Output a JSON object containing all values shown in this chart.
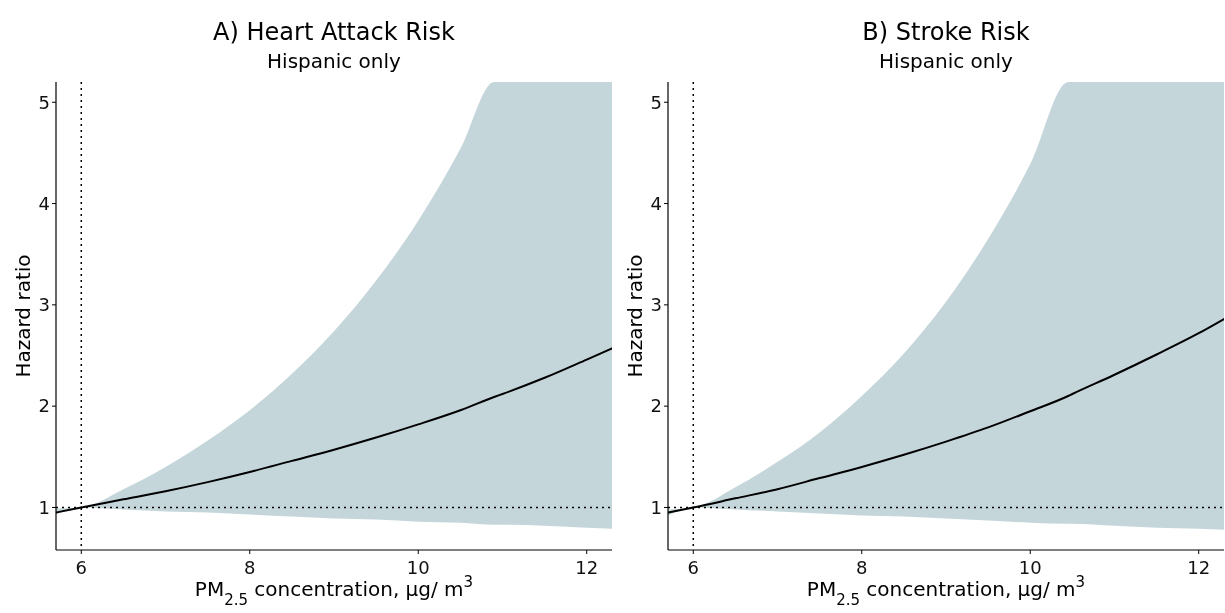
{
  "chart_data": [
    {
      "type": "line",
      "title": "A) Heart Attack Risk",
      "subtitle": "Hispanic only",
      "xlabel": "PM$_{2.5}$ concentration, μg/ m$^{3}$",
      "ylabel": "Hazard ratio",
      "x": [
        5.7,
        6,
        6.5,
        7,
        7.5,
        8,
        8.5,
        9,
        9.5,
        10,
        10.5,
        10.9,
        11,
        11.5,
        12,
        12.3
      ],
      "series": [
        {
          "color": "#000000",
          "values": [
            0.95,
            1,
            1.08,
            1.16,
            1.25,
            1.35,
            1.46,
            1.57,
            1.69,
            1.82,
            1.96,
            2.09,
            2.12,
            2.28,
            2.46,
            2.57
          ],
          "upper": [
            0.99,
            1,
            1.18,
            1.4,
            1.66,
            1.96,
            2.32,
            2.74,
            3.24,
            3.83,
            4.54,
            5.2,
            5.2,
            5.2,
            5.2,
            5.2
          ],
          "lower": [
            0.93,
            1,
            0.98,
            0.96,
            0.95,
            0.93,
            0.91,
            0.89,
            0.88,
            0.86,
            0.85,
            0.83,
            0.83,
            0.82,
            0.8,
            0.79
          ]
        }
      ],
      "xlim": [
        5.7,
        12.3
      ],
      "xticks": [
        6,
        8,
        10,
        12
      ],
      "ylim": [
        0.58,
        5.2
      ],
      "yticks": [
        1,
        2,
        3,
        4,
        5
      ],
      "ref_lines": [
        {
          "axis": "x",
          "value": 6,
          "line_style": "dotted"
        },
        {
          "axis": "y",
          "value": 1,
          "line_style": "dotted"
        }
      ],
      "grid": false,
      "line_style": "solid"
    },
    {
      "type": "line",
      "title": "B) Stroke Risk",
      "subtitle": "Hispanic only",
      "xlabel": "PM$_{2.5}$ concentration, μg/ m$^{3}$",
      "ylabel": "Hazard ratio",
      "x": [
        5.7,
        6,
        6.5,
        7,
        7.5,
        8,
        8.5,
        9,
        9.5,
        10,
        10.45,
        10.5,
        11,
        11.5,
        12,
        12.3
      ],
      "series": [
        {
          "color": "#000000",
          "values": [
            0.95,
            1,
            1.09,
            1.18,
            1.29,
            1.4,
            1.52,
            1.65,
            1.79,
            1.95,
            2.1,
            2.12,
            2.31,
            2.51,
            2.72,
            2.86
          ],
          "upper": [
            0.98,
            1,
            1.2,
            1.45,
            1.74,
            2.1,
            2.52,
            3.03,
            3.65,
            4.39,
            5.2,
            5.2,
            5.2,
            5.2,
            5.2,
            5.2
          ],
          "lower": [
            0.92,
            1,
            0.98,
            0.96,
            0.94,
            0.92,
            0.91,
            0.89,
            0.87,
            0.85,
            0.84,
            0.84,
            0.82,
            0.8,
            0.79,
            0.78
          ]
        }
      ],
      "xlim": [
        5.7,
        12.3
      ],
      "xticks": [
        6,
        8,
        10,
        12
      ],
      "ylim": [
        0.58,
        5.2
      ],
      "yticks": [
        1,
        2,
        3,
        4,
        5
      ],
      "ref_lines": [
        {
          "axis": "x",
          "value": 6,
          "line_style": "dotted"
        },
        {
          "axis": "y",
          "value": 1,
          "line_style": "dotted"
        }
      ],
      "grid": false,
      "line_style": "solid"
    }
  ]
}
